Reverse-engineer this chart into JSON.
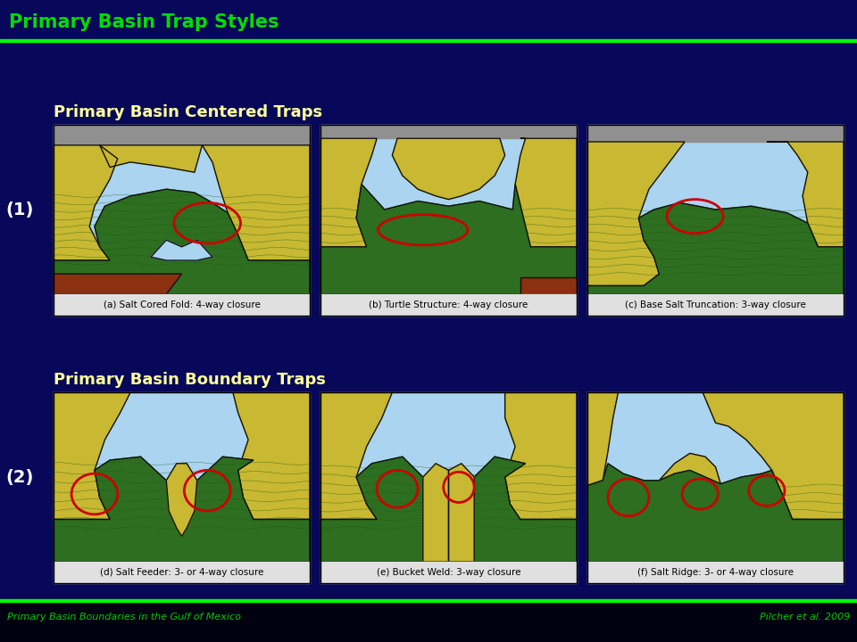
{
  "bg_color": "#07085a",
  "header_bar_color": "#07085a",
  "green_line_color": "#00ff00",
  "title": "Primary Basin Trap Styles",
  "title_color": "#00dd00",
  "title_fontsize": 15,
  "section1_label": "Primary Basin Centered Traps",
  "section2_label": "Primary Basin Boundary Traps",
  "section_label_color": "#ffff99",
  "section_label_fontsize": 13,
  "row_labels": [
    "(1)",
    "(2)"
  ],
  "row_label_color": "#ffffff",
  "captions": [
    "(a) Salt Cored Fold: 4-way closure",
    "(b) Turtle Structure: 4-way closure",
    "(c) Base Salt Truncation: 3-way closure",
    "(d) Salt Feeder: 3- or 4-way closure",
    "(e) Bucket Weld: 3-way closure",
    "(f) Salt Ridge: 3- or 4-way closure"
  ],
  "footer_left": "Primary Basin Boundaries in the Gulf of Mexico",
  "footer_right": "Pilcher et al. 2009",
  "footer_color": "#00cc00",
  "footer_fontsize": 8,
  "ellipse_color": "#cc0000",
  "ellipse_linewidth": 2.0,
  "sky_color": "#aad4f0",
  "salt_color": "#c8b832",
  "salt_color2": "#d4c040",
  "green_layer_color": "#2d6e20",
  "green_layer2": "#356825",
  "dark_red_color": "#8B3010",
  "gray_color": "#909090",
  "black_outline": "#111111",
  "caption_bg": "#e0e0e0",
  "caption_fontsize": 7.5,
  "panel_border": "#000000"
}
